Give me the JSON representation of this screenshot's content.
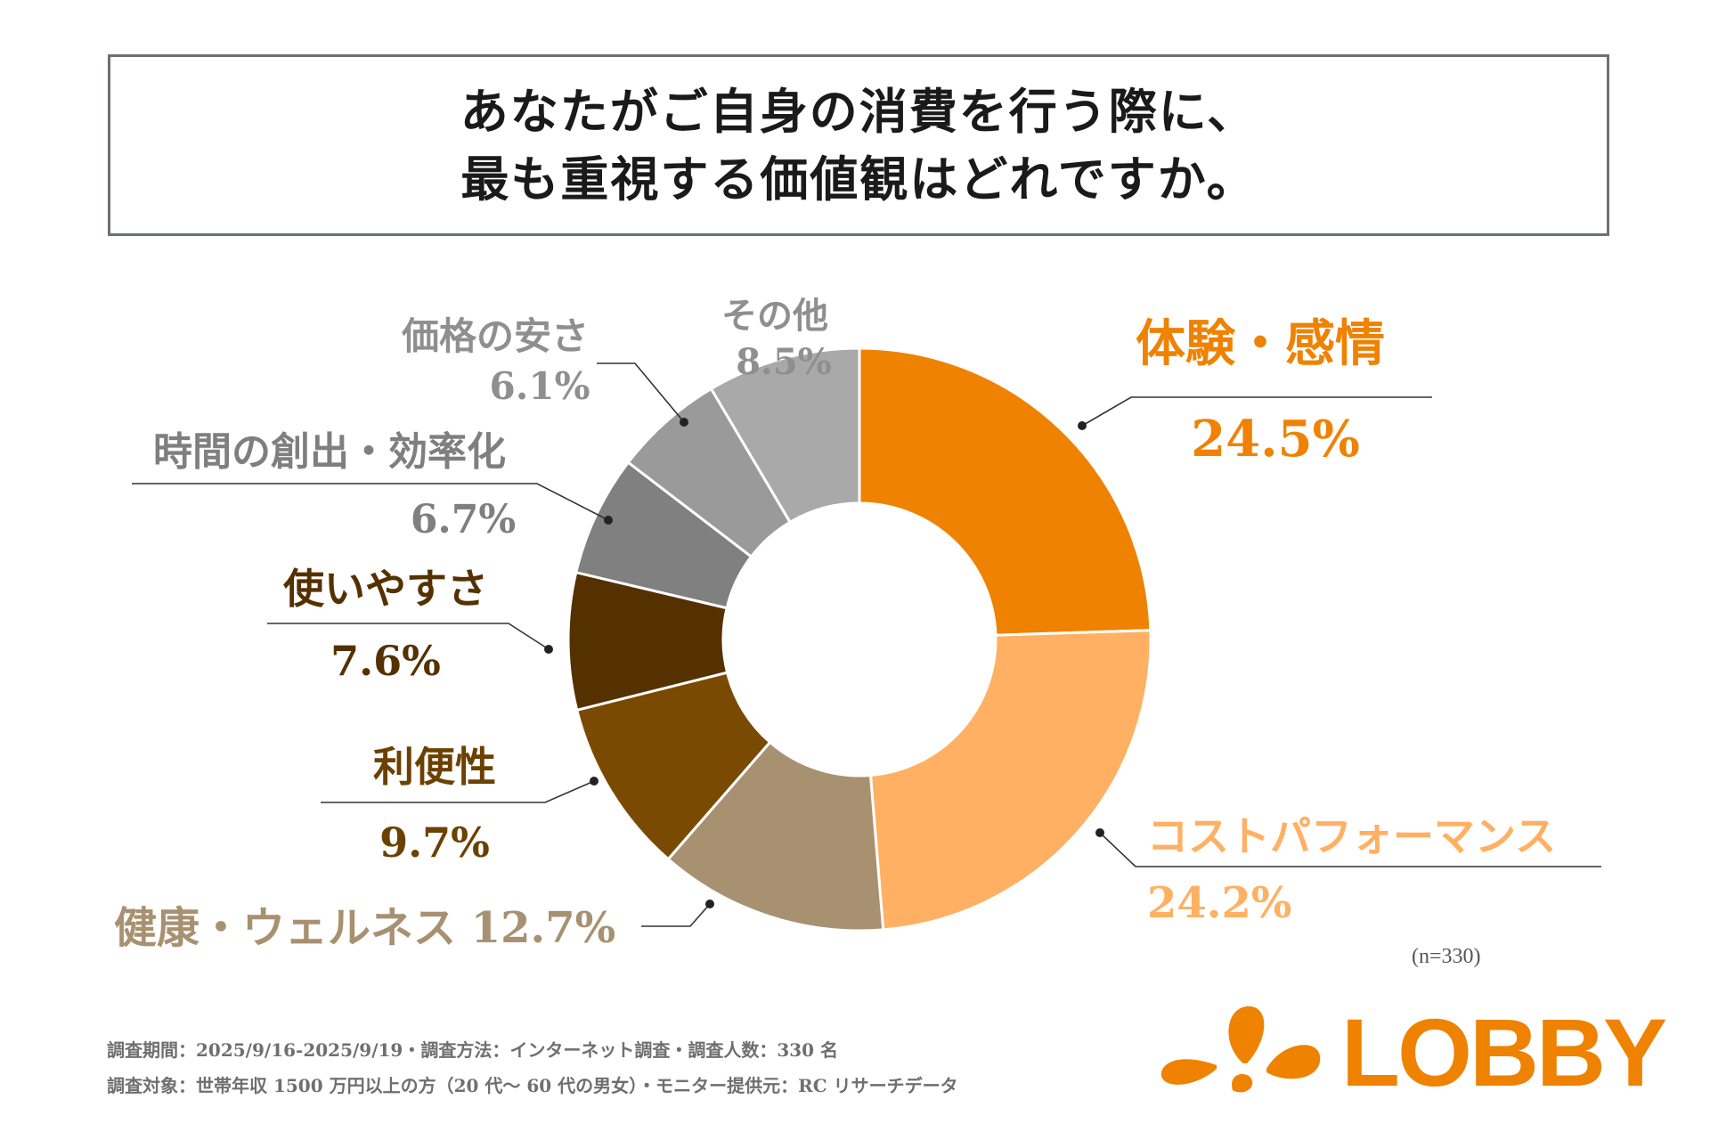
{
  "title": {
    "line1": "あなたがご自身の消費を行う際に、",
    "line2": "最も重視する価値観はどれですか。"
  },
  "chart_data": {
    "type": "pie",
    "donut": true,
    "start": "top, clockwise",
    "categories": [
      "体験・感情",
      "コストパフォーマンス",
      "健康・ウェルネス",
      "利便性",
      "使いやすさ",
      "時間の創出・効率化",
      "価格の安さ",
      "その他"
    ],
    "values": [
      24.5,
      24.2,
      12.7,
      9.7,
      7.6,
      6.7,
      6.1,
      8.5
    ],
    "value_labels": [
      "24.5%",
      "24.2%",
      "12.7%",
      "9.7%",
      "7.6%",
      "6.7%",
      "6.1%",
      "8.5%"
    ],
    "colors": [
      "#ef8200",
      "#ffb062",
      "#a89171",
      "#7b4a02",
      "#553100",
      "#808080",
      "#9a9a9a",
      "#a9a9a9"
    ],
    "label_colors": [
      "#ef8200",
      "#ffb062",
      "#a89171",
      "#6b4100",
      "#553100",
      "#7f7f7f",
      "#8f8f8f",
      "#8f8f8f"
    ]
  },
  "sample_size": "(n=330)",
  "footnotes": {
    "line1": "調査期間：2025/9/16-2025/9/19・調査方法：インターネット調査・調査人数：330 名",
    "line2": "調査対象：世帯年収 1500 万円以上の方（20 代～ 60 代の男女）・モニター提供元：RC リサーチデータ"
  },
  "logo": {
    "text": "LOBBY",
    "color": "#ef8200"
  }
}
